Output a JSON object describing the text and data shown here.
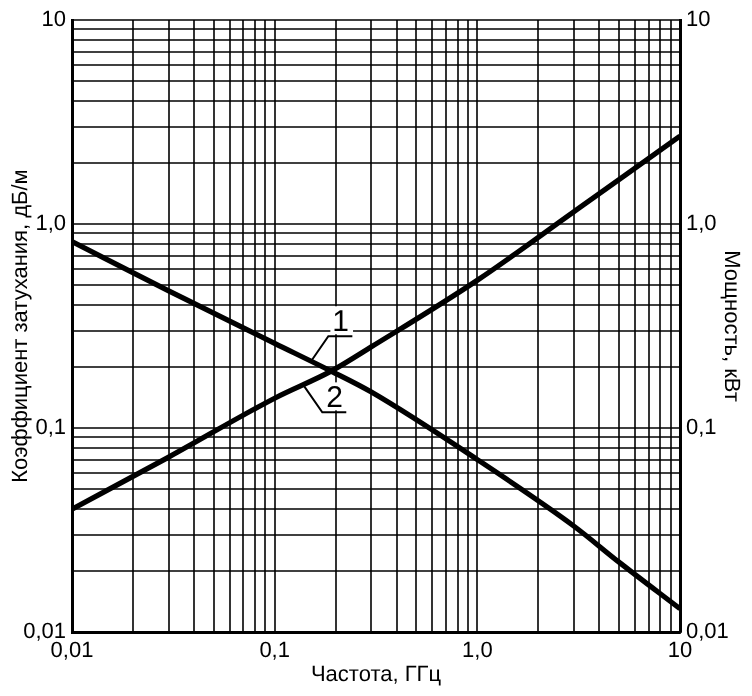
{
  "chart_data": {
    "type": "line",
    "xlabel": "Частота, ГГц",
    "ylabel": "Коэффициент затухания, дБ/м",
    "y2label": "Мощность, кВт",
    "log": "xy",
    "grid": true,
    "legend": false,
    "marker": "none",
    "line_style": "solid",
    "xlim": [
      0.01,
      10
    ],
    "ylim": [
      0.01,
      10
    ],
    "xticks": [
      {
        "value": 0.01,
        "label": "0,01"
      },
      {
        "value": 0.02,
        "label": null
      },
      {
        "value": 0.03,
        "label": null
      },
      {
        "value": 0.04,
        "label": null
      },
      {
        "value": 0.05,
        "label": null
      },
      {
        "value": 0.06,
        "label": null
      },
      {
        "value": 0.07,
        "label": null
      },
      {
        "value": 0.08,
        "label": null
      },
      {
        "value": 0.09,
        "label": null
      },
      {
        "value": 0.1,
        "label": "0,1"
      },
      {
        "value": 0.2,
        "label": null
      },
      {
        "value": 0.3,
        "label": null
      },
      {
        "value": 0.4,
        "label": null
      },
      {
        "value": 0.5,
        "label": null
      },
      {
        "value": 0.6,
        "label": null
      },
      {
        "value": 0.7,
        "label": null
      },
      {
        "value": 0.8,
        "label": null
      },
      {
        "value": 0.9,
        "label": null
      },
      {
        "value": 1,
        "label": "1,0"
      },
      {
        "value": 2,
        "label": null
      },
      {
        "value": 3,
        "label": null
      },
      {
        "value": 4,
        "label": null
      },
      {
        "value": 5,
        "label": null
      },
      {
        "value": 6,
        "label": null
      },
      {
        "value": 7,
        "label": null
      },
      {
        "value": 8,
        "label": null
      },
      {
        "value": 9,
        "label": null
      },
      {
        "value": 10,
        "label": "10"
      }
    ],
    "yticks": [
      {
        "value": 0.01,
        "label": "0,01"
      },
      {
        "value": 0.02,
        "label": null
      },
      {
        "value": 0.03,
        "label": null
      },
      {
        "value": 0.04,
        "label": null
      },
      {
        "value": 0.05,
        "label": null
      },
      {
        "value": 0.06,
        "label": null
      },
      {
        "value": 0.07,
        "label": null
      },
      {
        "value": 0.08,
        "label": null
      },
      {
        "value": 0.09,
        "label": null
      },
      {
        "value": 0.1,
        "label": "0,1"
      },
      {
        "value": 0.2,
        "label": null
      },
      {
        "value": 0.3,
        "label": null
      },
      {
        "value": 0.4,
        "label": null
      },
      {
        "value": 0.5,
        "label": null
      },
      {
        "value": 0.6,
        "label": null
      },
      {
        "value": 0.7,
        "label": null
      },
      {
        "value": 0.8,
        "label": null
      },
      {
        "value": 0.9,
        "label": null
      },
      {
        "value": 1,
        "label": "1,0"
      },
      {
        "value": 2,
        "label": null
      },
      {
        "value": 3,
        "label": null
      },
      {
        "value": 4,
        "label": null
      },
      {
        "value": 5,
        "label": null
      },
      {
        "value": 6,
        "label": null
      },
      {
        "value": 7,
        "label": null
      },
      {
        "value": 8,
        "label": null
      },
      {
        "value": 9,
        "label": null
      },
      {
        "value": 10,
        "label": "10"
      }
    ],
    "series": [
      {
        "color": "#000000",
        "x": [
          0.01,
          0.03,
          0.1,
          0.19,
          0.3,
          1,
          3,
          5,
          10
        ],
        "values": [
          0.82,
          0.47,
          0.26,
          0.19,
          0.15,
          0.07,
          0.033,
          0.022,
          0.013
        ]
      },
      {
        "color": "#000000",
        "x": [
          0.01,
          0.03,
          0.1,
          0.19,
          0.3,
          1,
          3,
          5,
          10
        ],
        "values": [
          0.04,
          0.072,
          0.14,
          0.19,
          0.25,
          0.53,
          1.15,
          1.65,
          2.7
        ]
      }
    ],
    "annotations": [
      {
        "text": "1",
        "x": 0.15,
        "y": 0.21
      },
      {
        "text": "2",
        "x": 0.14,
        "y": 0.16
      }
    ]
  }
}
